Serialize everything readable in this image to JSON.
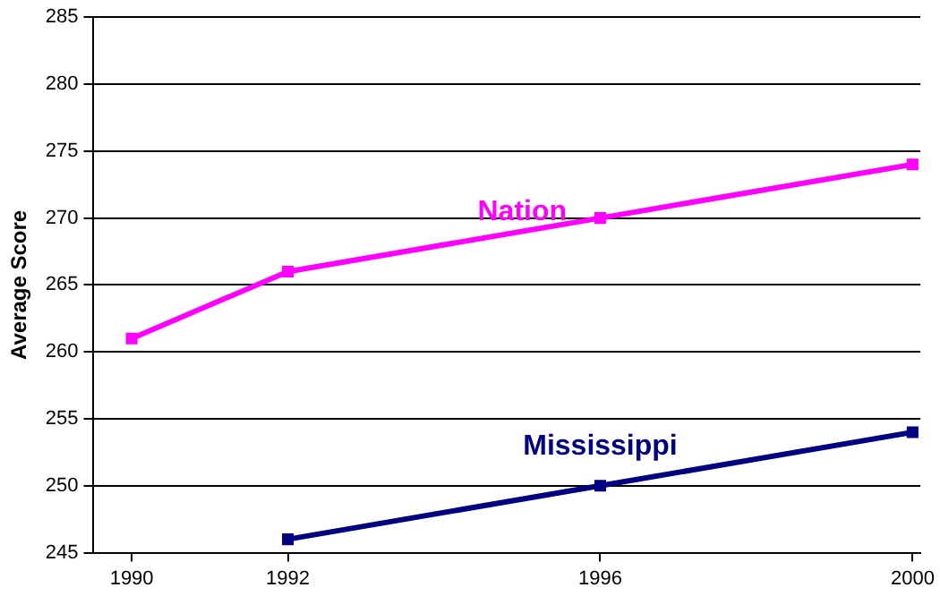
{
  "chart_data": {
    "type": "line",
    "ylabel": "Average Score",
    "xlim": [
      1989.5,
      2000.1
    ],
    "xticks": [
      1990,
      1992,
      1996,
      2000
    ],
    "ylim": [
      245,
      285
    ],
    "yticks": [
      245,
      250,
      255,
      260,
      265,
      270,
      275,
      280,
      285
    ],
    "grid": "y",
    "legend": false,
    "marker": "square",
    "line_style": "solid",
    "series": [
      {
        "name": "Nation",
        "color": "#ff00ff",
        "x": [
          1990,
          1992,
          1996,
          2000
        ],
        "values": [
          261,
          266,
          270,
          274
        ]
      },
      {
        "name": "Mississippi",
        "color": "#000080",
        "x": [
          1992,
          1996,
          2000
        ],
        "values": [
          246,
          250,
          254
        ]
      }
    ]
  }
}
